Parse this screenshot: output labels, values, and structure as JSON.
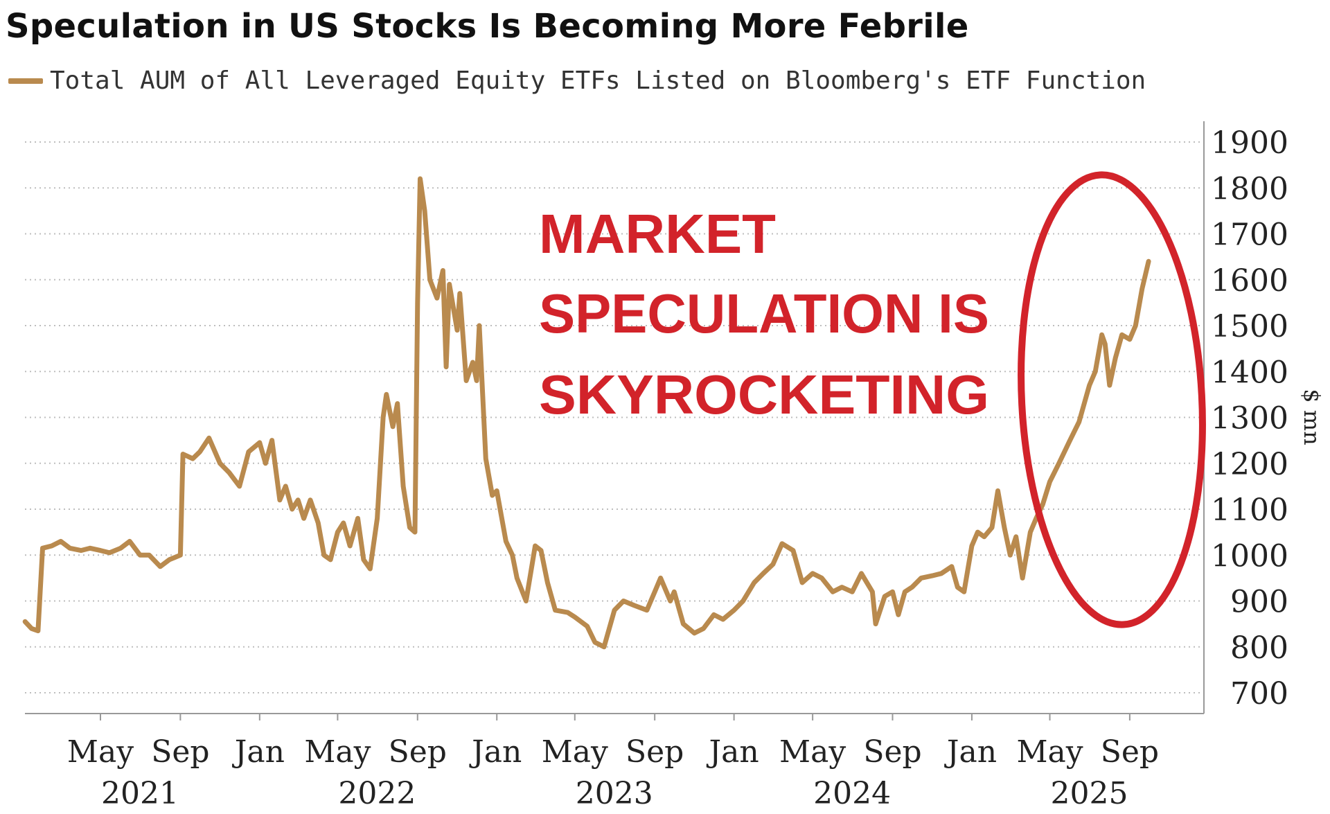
{
  "header": {
    "title": "Speculation in US Stocks Is Becoming More Febrile",
    "legend_label": "Total AUM of All Leveraged Equity ETFs Listed on Bloomberg's ETF Function"
  },
  "annotation": {
    "lines": [
      "MARKET",
      "SPECULATION IS",
      "SKYROCKETING"
    ],
    "color": "#d2232a"
  },
  "colors": {
    "series": "#b98a4e",
    "grid": "#bdbdbd",
    "axis": "#999999",
    "text": "#222222"
  },
  "chart_data": {
    "type": "line",
    "title": "Speculation in US Stocks Is Becoming More Febrile",
    "ylabel": "$ mn",
    "xlabel": "",
    "ylim": [
      700,
      1900
    ],
    "xlim": [
      "2021-01-01",
      "2025-12-31"
    ],
    "y_ticks": [
      700,
      800,
      900,
      1000,
      1100,
      1200,
      1300,
      1400,
      1500,
      1600,
      1700,
      1800,
      1900
    ],
    "x_ticks": [
      {
        "date": "2021-05-01",
        "label": "May",
        "year": "2021"
      },
      {
        "date": "2021-09-01",
        "label": "Sep",
        "year": ""
      },
      {
        "date": "2022-01-01",
        "label": "Jan",
        "year": ""
      },
      {
        "date": "2022-05-01",
        "label": "May",
        "year": "2022"
      },
      {
        "date": "2022-09-01",
        "label": "Sep",
        "year": ""
      },
      {
        "date": "2023-01-01",
        "label": "Jan",
        "year": ""
      },
      {
        "date": "2023-05-01",
        "label": "May",
        "year": "2023"
      },
      {
        "date": "2023-09-01",
        "label": "Sep",
        "year": ""
      },
      {
        "date": "2024-01-01",
        "label": "Jan",
        "year": ""
      },
      {
        "date": "2024-05-01",
        "label": "May",
        "year": "2024"
      },
      {
        "date": "2024-09-01",
        "label": "Sep",
        "year": ""
      },
      {
        "date": "2025-01-01",
        "label": "Jan",
        "year": ""
      },
      {
        "date": "2025-05-01",
        "label": "May",
        "year": "2025"
      },
      {
        "date": "2025-09-01",
        "label": "Sep",
        "year": ""
      }
    ],
    "grid": true,
    "legend_position": "top-left",
    "series": [
      {
        "name": "Total AUM of All Leveraged Equity ETFs Listed on Bloomberg's ETF Function",
        "points": [
          [
            "2021-01-05",
            855
          ],
          [
            "2021-01-15",
            840
          ],
          [
            "2021-01-25",
            835
          ],
          [
            "2021-02-01",
            1015
          ],
          [
            "2021-02-15",
            1020
          ],
          [
            "2021-03-01",
            1030
          ],
          [
            "2021-03-15",
            1015
          ],
          [
            "2021-04-01",
            1010
          ],
          [
            "2021-04-15",
            1015
          ],
          [
            "2021-05-01",
            1010
          ],
          [
            "2021-05-15",
            1005
          ],
          [
            "2021-06-01",
            1015
          ],
          [
            "2021-06-15",
            1030
          ],
          [
            "2021-07-01",
            1000
          ],
          [
            "2021-07-15",
            1000
          ],
          [
            "2021-08-01",
            975
          ],
          [
            "2021-08-15",
            990
          ],
          [
            "2021-09-01",
            1000
          ],
          [
            "2021-09-05",
            1220
          ],
          [
            "2021-09-20",
            1210
          ],
          [
            "2021-10-01",
            1225
          ],
          [
            "2021-10-15",
            1255
          ],
          [
            "2021-11-01",
            1200
          ],
          [
            "2021-11-15",
            1180
          ],
          [
            "2021-12-01",
            1150
          ],
          [
            "2021-12-15",
            1225
          ],
          [
            "2022-01-01",
            1245
          ],
          [
            "2022-01-10",
            1200
          ],
          [
            "2022-01-20",
            1250
          ],
          [
            "2022-02-01",
            1120
          ],
          [
            "2022-02-10",
            1150
          ],
          [
            "2022-02-20",
            1100
          ],
          [
            "2022-03-01",
            1120
          ],
          [
            "2022-03-10",
            1080
          ],
          [
            "2022-03-20",
            1120
          ],
          [
            "2022-04-01",
            1070
          ],
          [
            "2022-04-10",
            1000
          ],
          [
            "2022-04-20",
            990
          ],
          [
            "2022-05-01",
            1050
          ],
          [
            "2022-05-10",
            1070
          ],
          [
            "2022-05-20",
            1020
          ],
          [
            "2022-06-01",
            1080
          ],
          [
            "2022-06-10",
            990
          ],
          [
            "2022-06-20",
            970
          ],
          [
            "2022-07-01",
            1080
          ],
          [
            "2022-07-10",
            1300
          ],
          [
            "2022-07-15",
            1350
          ],
          [
            "2022-07-25",
            1280
          ],
          [
            "2022-08-01",
            1330
          ],
          [
            "2022-08-10",
            1150
          ],
          [
            "2022-08-20",
            1060
          ],
          [
            "2022-08-28",
            1050
          ],
          [
            "2022-09-01",
            1550
          ],
          [
            "2022-09-05",
            1820
          ],
          [
            "2022-09-12",
            1750
          ],
          [
            "2022-09-20",
            1600
          ],
          [
            "2022-10-01",
            1560
          ],
          [
            "2022-10-10",
            1620
          ],
          [
            "2022-10-15",
            1410
          ],
          [
            "2022-10-20",
            1590
          ],
          [
            "2022-11-01",
            1490
          ],
          [
            "2022-11-05",
            1570
          ],
          [
            "2022-11-15",
            1380
          ],
          [
            "2022-11-25",
            1420
          ],
          [
            "2022-12-01",
            1380
          ],
          [
            "2022-12-05",
            1500
          ],
          [
            "2022-12-15",
            1210
          ],
          [
            "2022-12-25",
            1130
          ],
          [
            "2023-01-01",
            1140
          ],
          [
            "2023-01-15",
            1030
          ],
          [
            "2023-01-25",
            1000
          ],
          [
            "2023-02-01",
            950
          ],
          [
            "2023-02-15",
            900
          ],
          [
            "2023-03-01",
            1020
          ],
          [
            "2023-03-10",
            1010
          ],
          [
            "2023-03-20",
            940
          ],
          [
            "2023-04-01",
            880
          ],
          [
            "2023-04-20",
            875
          ],
          [
            "2023-05-01",
            865
          ],
          [
            "2023-05-20",
            845
          ],
          [
            "2023-06-01",
            810
          ],
          [
            "2023-06-15",
            800
          ],
          [
            "2023-07-01",
            880
          ],
          [
            "2023-07-15",
            900
          ],
          [
            "2023-08-01",
            890
          ],
          [
            "2023-08-20",
            880
          ],
          [
            "2023-09-01",
            920
          ],
          [
            "2023-09-10",
            950
          ],
          [
            "2023-09-25",
            900
          ],
          [
            "2023-10-01",
            920
          ],
          [
            "2023-10-15",
            850
          ],
          [
            "2023-11-01",
            830
          ],
          [
            "2023-11-15",
            840
          ],
          [
            "2023-12-01",
            870
          ],
          [
            "2023-12-15",
            860
          ],
          [
            "2024-01-01",
            880
          ],
          [
            "2024-01-15",
            900
          ],
          [
            "2024-02-01",
            940
          ],
          [
            "2024-02-15",
            960
          ],
          [
            "2024-03-01",
            980
          ],
          [
            "2024-03-15",
            1025
          ],
          [
            "2024-04-01",
            1010
          ],
          [
            "2024-04-15",
            940
          ],
          [
            "2024-05-01",
            960
          ],
          [
            "2024-05-15",
            950
          ],
          [
            "2024-06-01",
            920
          ],
          [
            "2024-06-15",
            930
          ],
          [
            "2024-07-01",
            920
          ],
          [
            "2024-07-15",
            960
          ],
          [
            "2024-08-01",
            920
          ],
          [
            "2024-08-06",
            850
          ],
          [
            "2024-08-20",
            910
          ],
          [
            "2024-09-01",
            920
          ],
          [
            "2024-09-10",
            870
          ],
          [
            "2024-09-20",
            920
          ],
          [
            "2024-10-01",
            930
          ],
          [
            "2024-10-15",
            950
          ],
          [
            "2024-11-01",
            955
          ],
          [
            "2024-11-15",
            960
          ],
          [
            "2024-12-01",
            975
          ],
          [
            "2024-12-10",
            930
          ],
          [
            "2024-12-20",
            920
          ],
          [
            "2025-01-01",
            1020
          ],
          [
            "2025-01-10",
            1050
          ],
          [
            "2025-01-20",
            1040
          ],
          [
            "2025-02-01",
            1060
          ],
          [
            "2025-02-10",
            1140
          ],
          [
            "2025-02-20",
            1060
          ],
          [
            "2025-03-01",
            1000
          ],
          [
            "2025-03-10",
            1040
          ],
          [
            "2025-03-20",
            950
          ],
          [
            "2025-04-01",
            1050
          ],
          [
            "2025-04-10",
            1080
          ],
          [
            "2025-04-20",
            1110
          ],
          [
            "2025-05-01",
            1160
          ],
          [
            "2025-05-15",
            1200
          ],
          [
            "2025-06-01",
            1250
          ],
          [
            "2025-06-15",
            1290
          ],
          [
            "2025-07-01",
            1370
          ],
          [
            "2025-07-10",
            1400
          ],
          [
            "2025-07-20",
            1480
          ],
          [
            "2025-07-25",
            1460
          ],
          [
            "2025-08-01",
            1370
          ],
          [
            "2025-08-10",
            1430
          ],
          [
            "2025-08-20",
            1480
          ],
          [
            "2025-09-01",
            1470
          ],
          [
            "2025-09-10",
            1500
          ],
          [
            "2025-09-20",
            1580
          ],
          [
            "2025-09-30",
            1640
          ]
        ]
      }
    ]
  }
}
